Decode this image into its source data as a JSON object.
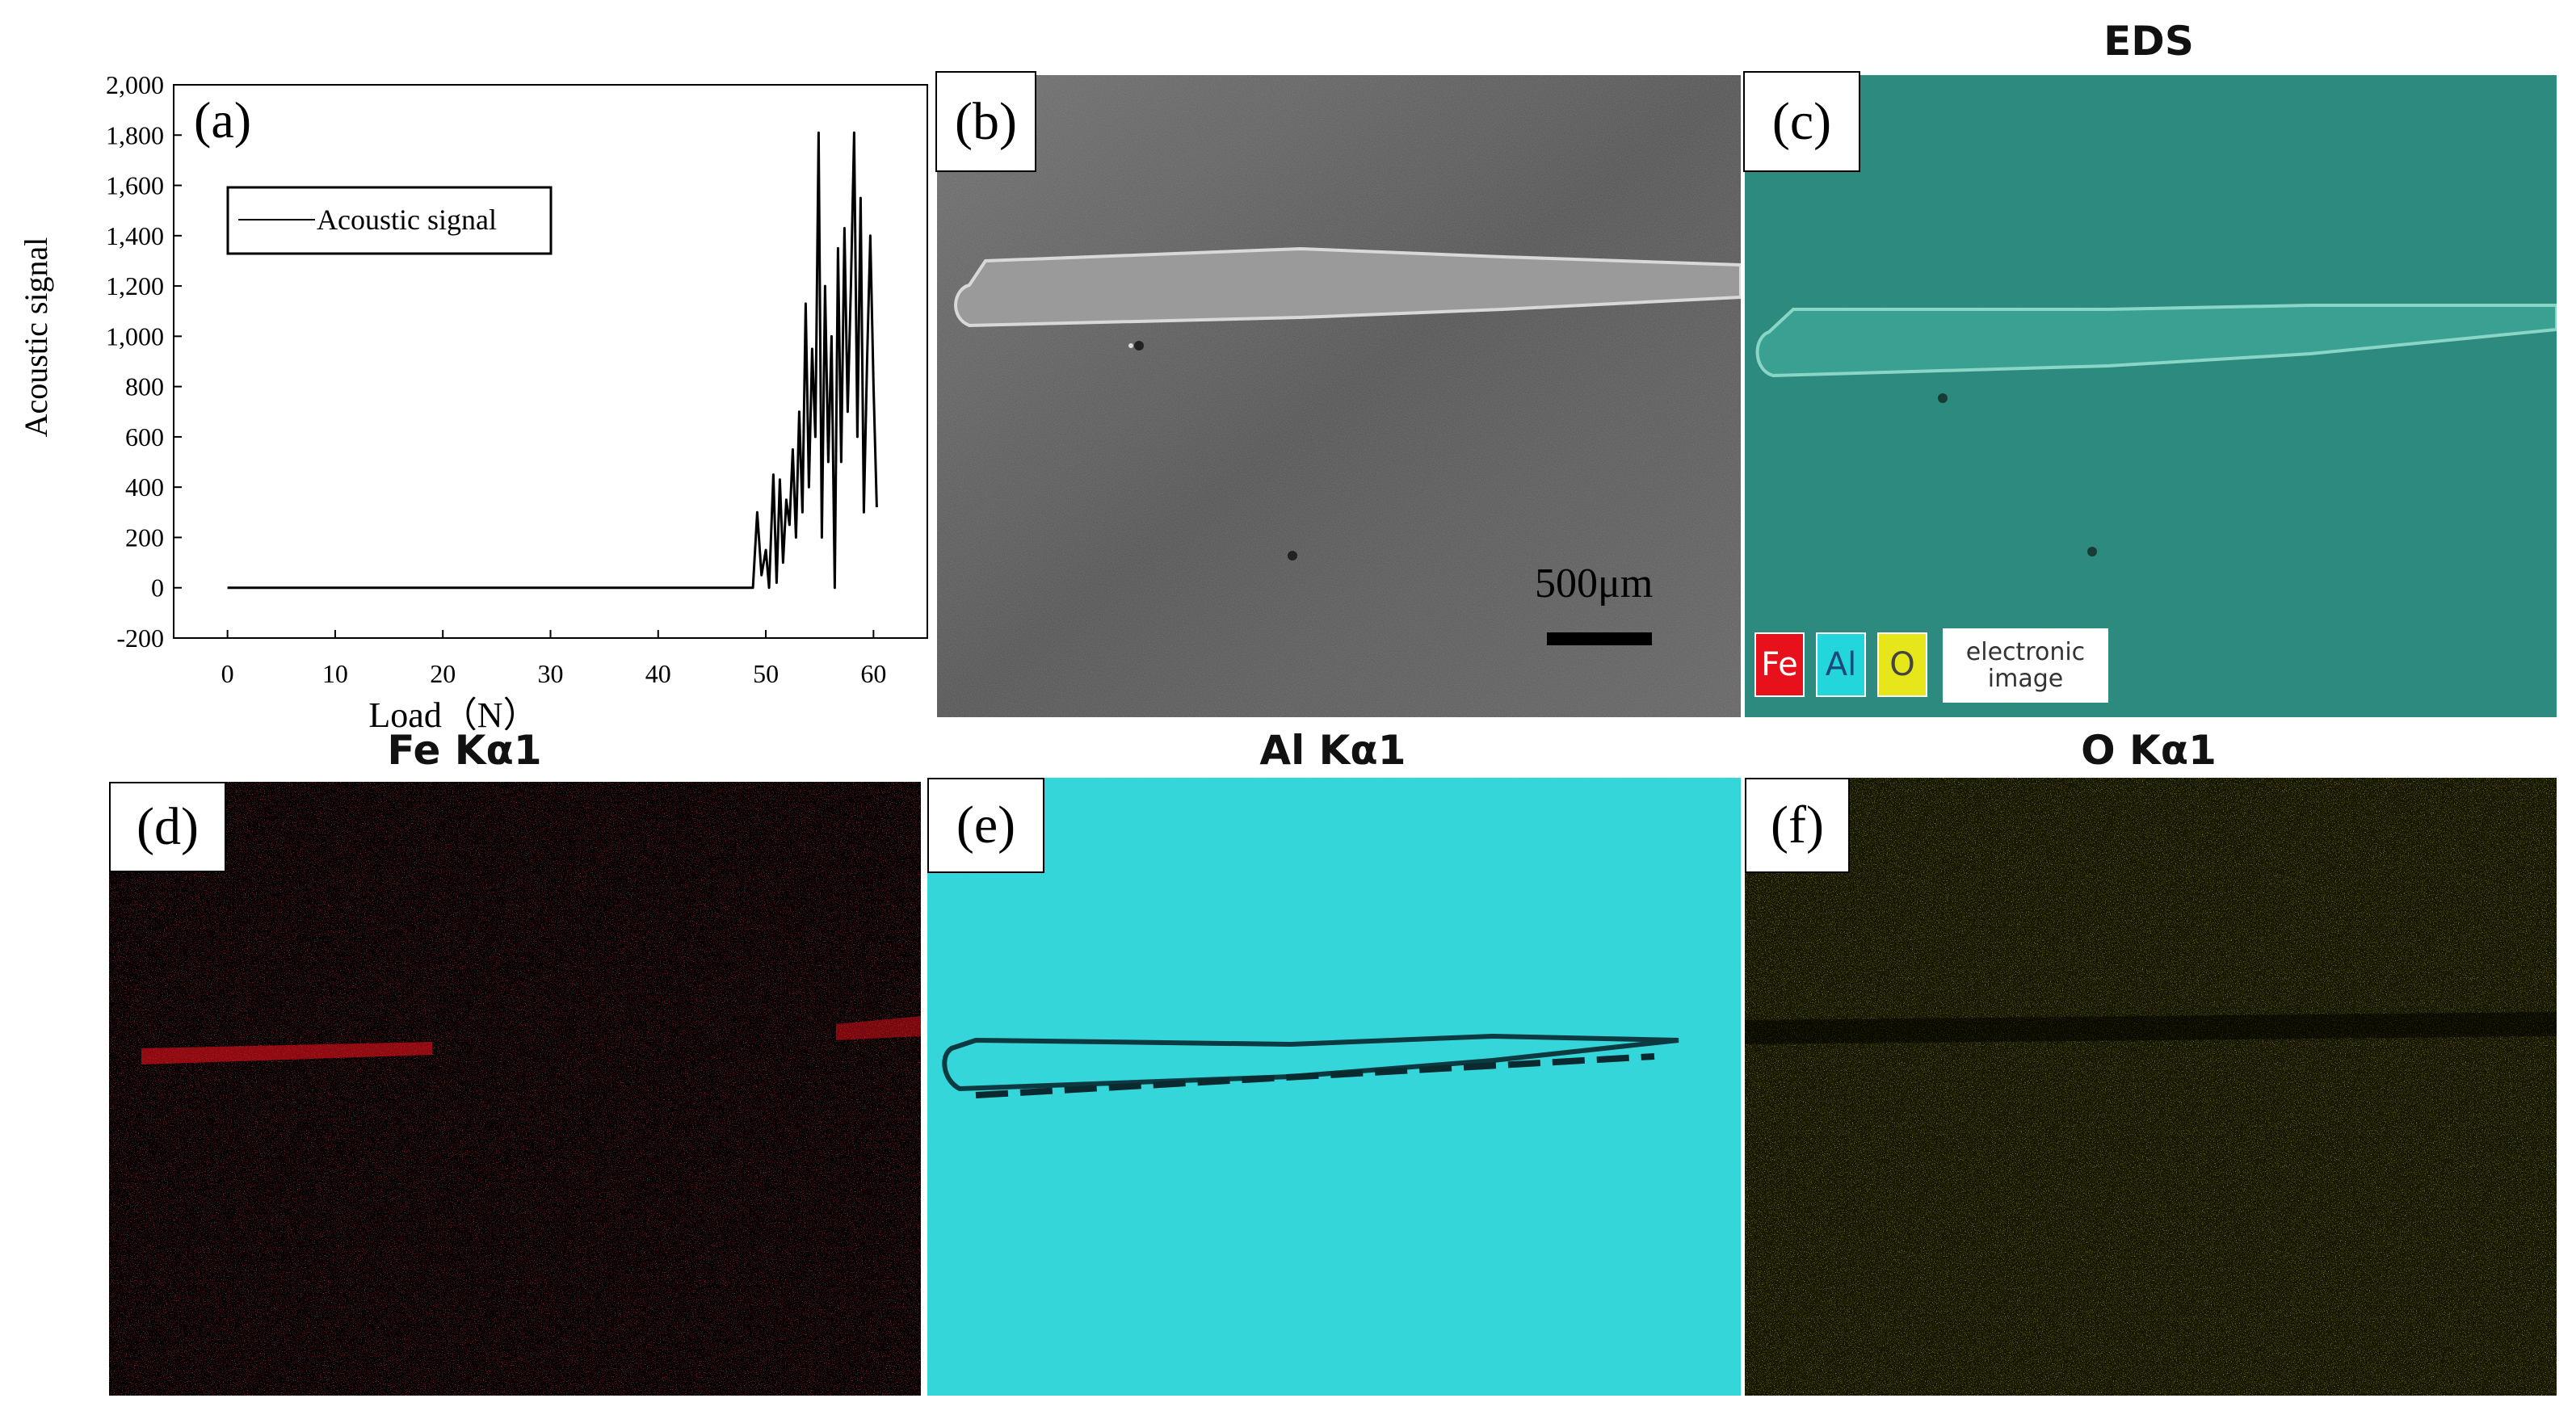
{
  "chart_data": {
    "type": "line",
    "panel_label": "(a)",
    "xlabel": "Load（N）",
    "ylabel": "Acoustic signal",
    "xlim": [
      -5,
      65
    ],
    "ylim": [
      -200,
      2000
    ],
    "x_ticks": [
      "0",
      "10",
      "20",
      "30",
      "40",
      "50",
      "60"
    ],
    "y_ticks": [
      "-200",
      "0",
      "200",
      "400",
      "600",
      "800",
      "1,000",
      "1,200",
      "1,400",
      "1,600",
      "1,800",
      "2,000"
    ],
    "legend": {
      "position": "top-left",
      "entries": [
        "Acoustic signal"
      ]
    },
    "series": [
      {
        "name": "Acoustic signal",
        "color": "#000000",
        "x": [
          0,
          10,
          20,
          30,
          40,
          48.8,
          49.2,
          49.6,
          50.0,
          50.3,
          50.7,
          51.0,
          51.3,
          51.6,
          51.9,
          52.2,
          52.5,
          52.8,
          53.1,
          53.4,
          53.7,
          54.0,
          54.3,
          54.6,
          54.9,
          55.2,
          55.5,
          55.8,
          56.1,
          56.4,
          56.7,
          57.0,
          57.3,
          57.6,
          57.9,
          58.2,
          58.5,
          58.8,
          59.1,
          59.4,
          59.7,
          60.0,
          60.3
        ],
        "y": [
          0,
          0,
          0,
          0,
          0,
          0,
          300,
          50,
          150,
          0,
          450,
          20,
          430,
          100,
          350,
          250,
          550,
          200,
          700,
          300,
          1130,
          400,
          950,
          600,
          1810,
          200,
          1200,
          500,
          1000,
          0,
          1350,
          500,
          1430,
          700,
          1200,
          1810,
          600,
          1550,
          300,
          900,
          1400,
          800,
          320
        ]
      }
    ]
  },
  "panels": {
    "b": {
      "label": "(b)",
      "scale_bar": "500μm"
    },
    "c": {
      "label": "(c)",
      "title": "EDS",
      "legend": [
        "Fe",
        "Al",
        "O",
        "electronic image"
      ]
    },
    "d": {
      "label": "(d)",
      "title": "Fe Kα1"
    },
    "e": {
      "label": "(e)",
      "title": "Al Kα1"
    },
    "f": {
      "label": "(f)",
      "title": "O Kα1"
    }
  },
  "colors": {
    "fe": "#e8101a",
    "al": "#22d6dc",
    "o": "#e6e61a",
    "sem_bg": "#555555"
  }
}
